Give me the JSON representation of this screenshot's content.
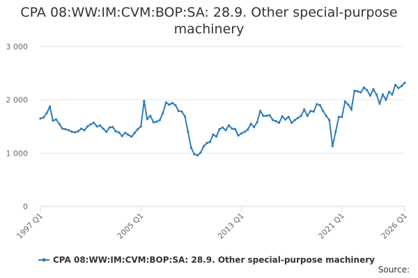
{
  "chart_data": {
    "type": "line",
    "title": "CPA 08:WW:IM:CVM:BOP:SA: 28.9. Other special-purpose machinery",
    "categories": [
      "1997 Q1",
      null,
      null,
      null,
      null,
      null,
      null,
      null,
      null,
      null,
      null,
      null,
      null,
      null,
      null,
      null,
      null,
      null,
      null,
      null,
      null,
      null,
      null,
      null,
      null,
      null,
      null,
      null,
      null,
      null,
      null,
      null,
      "2005 Q1",
      null,
      null,
      null,
      null,
      null,
      null,
      null,
      null,
      null,
      null,
      null,
      null,
      null,
      null,
      null,
      null,
      null,
      null,
      null,
      null,
      null,
      null,
      null,
      null,
      null,
      null,
      null,
      null,
      null,
      null,
      null,
      "2013 Q1",
      null,
      null,
      null,
      null,
      null,
      null,
      null,
      null,
      null,
      null,
      null,
      null,
      null,
      null,
      null,
      null,
      null,
      null,
      null,
      null,
      null,
      null,
      null,
      null,
      null,
      null,
      null,
      null,
      null,
      null,
      null,
      "2021 Q1",
      null,
      null,
      null,
      null,
      null,
      null,
      null,
      null,
      null,
      null,
      null,
      null,
      null,
      null,
      null,
      null,
      null,
      null,
      null,
      "2026 Q1"
    ],
    "series": [
      {
        "name": "CPA 08:WW:IM:CVM:BOP:SA: 28.9. Other special-purpose machinery",
        "color": "#2b7bb9",
        "values": [
          1650,
          1670,
          1750,
          1870,
          1610,
          1630,
          1550,
          1460,
          1450,
          1430,
          1400,
          1390,
          1410,
          1460,
          1430,
          1500,
          1540,
          1570,
          1500,
          1520,
          1460,
          1400,
          1480,
          1490,
          1410,
          1390,
          1320,
          1380,
          1340,
          1310,
          1380,
          1450,
          1500,
          1980,
          1640,
          1700,
          1580,
          1590,
          1620,
          1750,
          1950,
          1910,
          1940,
          1900,
          1790,
          1780,
          1690,
          1400,
          1100,
          980,
          960,
          1010,
          1130,
          1190,
          1210,
          1350,
          1310,
          1450,
          1480,
          1430,
          1520,
          1460,
          1450,
          1330,
          1370,
          1400,
          1440,
          1550,
          1490,
          1580,
          1790,
          1700,
          1700,
          1710,
          1620,
          1600,
          1570,
          1690,
          1630,
          1680,
          1570,
          1620,
          1660,
          1700,
          1820,
          1700,
          1790,
          1780,
          1920,
          1900,
          1790,
          1700,
          1620,
          1130,
          1400,
          1680,
          1680,
          1970,
          1910,
          1820,
          2170,
          2160,
          2140,
          2230,
          2180,
          2080,
          2200,
          2100,
          1930,
          2100,
          2000,
          2150,
          2100,
          2280,
          2220,
          2260,
          2320
        ]
      }
    ],
    "ylim": [
      0,
      3000
    ],
    "yticks": [
      0,
      {
        "value": 1000,
        "label": "1 000"
      },
      {
        "value": 2000,
        "label": "2 000"
      },
      {
        "value": 3000,
        "label": "3 000"
      }
    ],
    "grid": true,
    "source_label": "Source:"
  }
}
